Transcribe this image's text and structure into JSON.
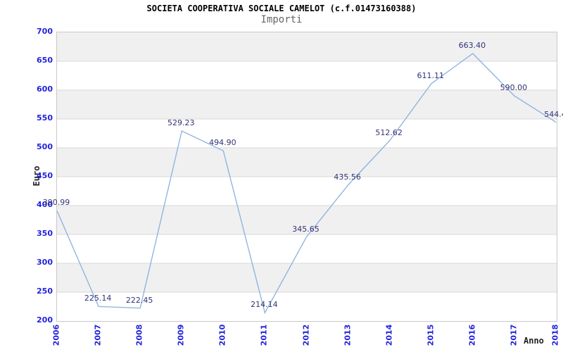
{
  "header": {
    "title": "SOCIETA COOPERATIVA SOCIALE CAMELOT (c.f.01473160388)",
    "subtitle": "Importi"
  },
  "chart_data": {
    "type": "line",
    "title": "SOCIETA COOPERATIVA SOCIALE CAMELOT (c.f.01473160388)",
    "subtitle": "Importi",
    "xlabel": "Anno",
    "ylabel": "Euro",
    "x": [
      2006,
      2007,
      2008,
      2009,
      2010,
      2011,
      2012,
      2013,
      2014,
      2015,
      2016,
      2017,
      2018
    ],
    "values": [
      390.99,
      225.14,
      222.45,
      529.23,
      494.9,
      214.14,
      345.65,
      435.56,
      512.62,
      611.11,
      663.4,
      590.0,
      544.4
    ],
    "point_labels": [
      "390.99",
      "225.14",
      "222.45",
      "529.23",
      "494.90",
      "214.14",
      "345.65",
      "435.56",
      "512.62",
      "611.11",
      "663.40",
      "590.00",
      "544.4"
    ],
    "ylim": [
      200,
      700
    ],
    "ytick_step": 50,
    "yticks": [
      200,
      250,
      300,
      350,
      400,
      450,
      500,
      550,
      600,
      650,
      700
    ],
    "grid": {
      "horizontal_bands": true,
      "legend": "none"
    },
    "colors": {
      "line": "#8ab0e0",
      "tick_label": "#2323dd",
      "point_label": "#333377",
      "band_gray": "#f0f0f0",
      "band_white": "#ffffff",
      "gridline": "#d9d9d9",
      "plot_border": "#c9c9c9",
      "title": "#000000",
      "subtitle": "#666666",
      "axis_title": "#222222"
    }
  }
}
